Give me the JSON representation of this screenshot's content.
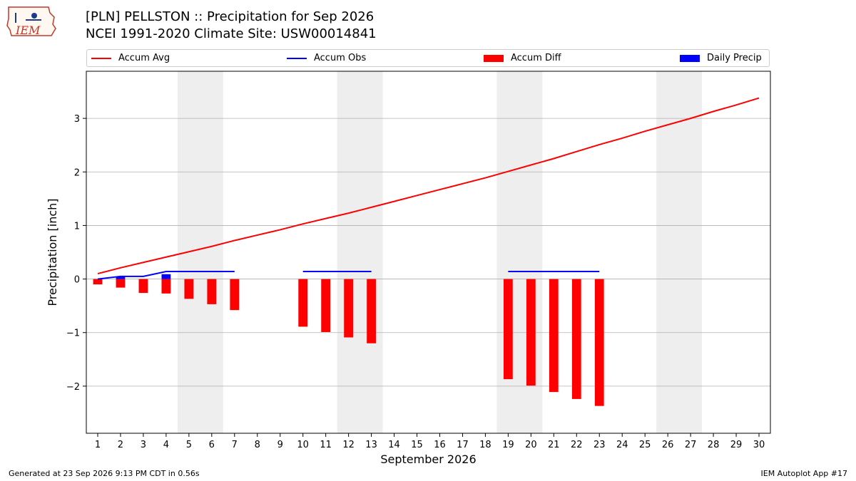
{
  "header": {
    "title_line1": "[PLN] PELLSTON :: Precipitation for Sep 2026",
    "title_line2": "NCEI 1991-2020 Climate Site: USW00014841"
  },
  "logo": {
    "text": "IEM"
  },
  "footer": {
    "left": "Generated at 23 Sep 2026 9:13 PM CDT in 0.56s",
    "right": "IEM Autoplot App #17"
  },
  "colors": {
    "accum_avg": "#ff0000",
    "accum_obs": "#0000ff",
    "accum_diff": "#ff0000",
    "daily_precip": "#0000ff",
    "weekend_shade": "#eeeeee",
    "grid": "#b0b0b0"
  },
  "chart_data": {
    "type": "bar",
    "xlabel": "September 2026",
    "ylabel": "Precipitation [inch]",
    "xlim": [
      0.5,
      30.5
    ],
    "ylim": [
      -2.88,
      3.88
    ],
    "yticks": [
      3,
      2,
      1,
      0,
      -1,
      -2
    ],
    "ytick_labels": [
      "3",
      "2",
      "1",
      "0",
      "−1",
      "−2"
    ],
    "xticks": [
      "1",
      "2",
      "3",
      "4",
      "5",
      "6",
      "7",
      "8",
      "9",
      "10",
      "11",
      "12",
      "13",
      "14",
      "15",
      "16",
      "17",
      "18",
      "19",
      "20",
      "21",
      "22",
      "23",
      "24",
      "25",
      "26",
      "27",
      "28",
      "29",
      "30"
    ],
    "grid": "horizontal",
    "legend_placement": "top",
    "shaded_ranges": [
      [
        4.5,
        6.5
      ],
      [
        11.5,
        13.5
      ],
      [
        18.5,
        20.5
      ],
      [
        25.5,
        27.5
      ]
    ],
    "series": [
      {
        "name": "Accum Avg",
        "kind": "line",
        "x": [
          1,
          2,
          3,
          4,
          5,
          6,
          7,
          8,
          9,
          10,
          11,
          12,
          13,
          14,
          15,
          16,
          17,
          18,
          19,
          20,
          21,
          22,
          23,
          24,
          25,
          26,
          27,
          28,
          29,
          30
        ],
        "values": [
          0.1,
          0.21,
          0.31,
          0.41,
          0.51,
          0.61,
          0.72,
          0.82,
          0.92,
          1.03,
          1.13,
          1.23,
          1.34,
          1.45,
          1.56,
          1.67,
          1.78,
          1.89,
          2.01,
          2.13,
          2.25,
          2.38,
          2.51,
          2.63,
          2.76,
          2.88,
          3.0,
          3.13,
          3.25,
          3.38
        ]
      },
      {
        "name": "Accum Obs",
        "kind": "line",
        "segments": [
          {
            "x": [
              1,
              2,
              3,
              4,
              5,
              6,
              7
            ],
            "values": [
              0.0,
              0.05,
              0.05,
              0.14,
              0.14,
              0.14,
              0.14
            ]
          },
          {
            "x": [
              10,
              11,
              12,
              13
            ],
            "values": [
              0.14,
              0.14,
              0.14,
              0.14
            ]
          },
          {
            "x": [
              19,
              20,
              21,
              22,
              23
            ],
            "values": [
              0.14,
              0.14,
              0.14,
              0.14,
              0.14
            ]
          }
        ]
      },
      {
        "name": "Accum Diff",
        "kind": "bar",
        "x": [
          1,
          2,
          3,
          4,
          5,
          6,
          7,
          10,
          11,
          12,
          13,
          19,
          20,
          21,
          22,
          23
        ],
        "values": [
          -0.1,
          -0.16,
          -0.26,
          -0.27,
          -0.37,
          -0.47,
          -0.58,
          -0.89,
          -0.99,
          -1.09,
          -1.2,
          -1.87,
          -1.99,
          -2.11,
          -2.24,
          -2.37
        ]
      },
      {
        "name": "Daily Precip",
        "kind": "bar",
        "x": [
          2,
          4
        ],
        "values": [
          0.04,
          0.09
        ]
      }
    ]
  }
}
